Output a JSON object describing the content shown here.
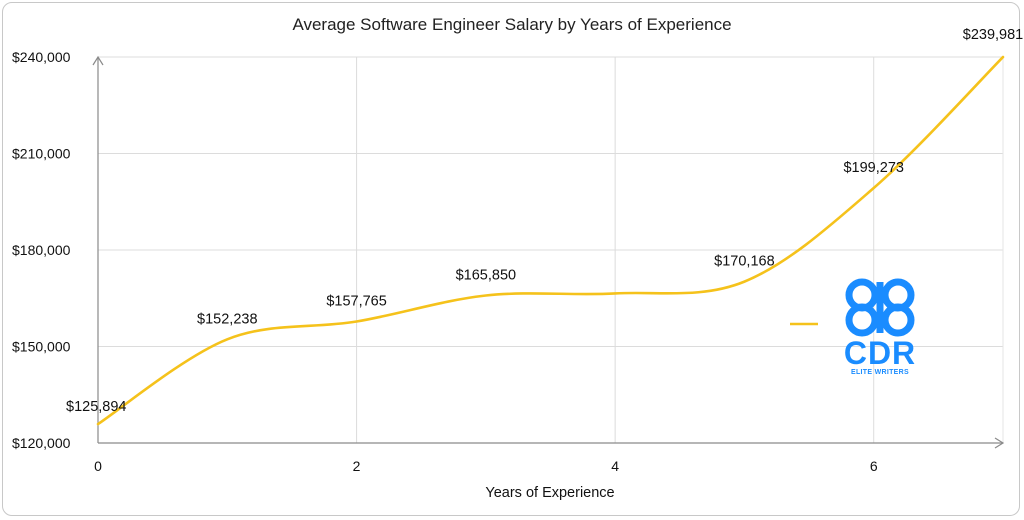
{
  "chart_data": {
    "type": "line",
    "title": "Average Software Engineer Salary by Years of Experience",
    "xlabel": "Years of Experience",
    "ylabel": "",
    "xlim": [
      0,
      7
    ],
    "ylim": [
      120000,
      240000
    ],
    "x_ticks": [
      0,
      2,
      4,
      6
    ],
    "x_tick_labels": [
      "0",
      "2",
      "4",
      "6"
    ],
    "y_ticks": [
      120000,
      150000,
      180000,
      210000,
      240000
    ],
    "y_tick_labels": [
      "$120,000",
      "$150,000",
      "$180,000",
      "$210,000",
      "$240,000"
    ],
    "grid": true,
    "smooth": true,
    "color": "#f5c21b",
    "series": [
      {
        "x": [
          0,
          1,
          2,
          3,
          4,
          5,
          6,
          7
        ],
        "values": [
          125894,
          152238,
          157765,
          165850,
          166500,
          170168,
          199273,
          239981
        ],
        "labels": [
          "$125,894",
          "$152,238",
          "$157,765",
          "$165,850",
          "",
          "$170,168",
          "$199,273",
          "$239,981"
        ]
      }
    ]
  },
  "logo": {
    "name": "cdr-elite-writers-logo",
    "text": "CDR",
    "subtext": "ELITE WRITERS",
    "color": "#1a8cff"
  }
}
